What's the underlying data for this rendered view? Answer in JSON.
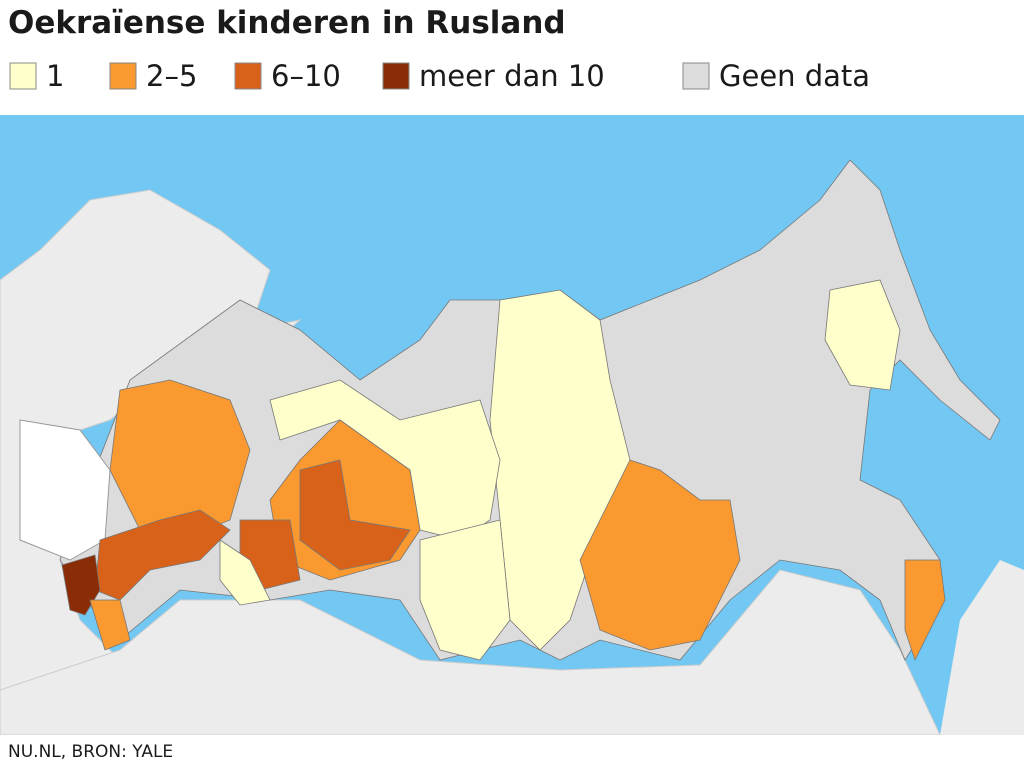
{
  "header": {
    "title": "Oekraïense kinderen in Rusland"
  },
  "legend": [
    {
      "label": "1",
      "color": "#ffffcc"
    },
    {
      "label": "2–5",
      "color": "#f9992f"
    },
    {
      "label": "6–10",
      "color": "#d9621a"
    },
    {
      "label": "meer dan 10",
      "color": "#8a2c05"
    },
    {
      "label": "Geen data",
      "color": "#dcdcdc"
    }
  ],
  "footer": {
    "source": "NU.NL, BRON: YALE"
  }
}
